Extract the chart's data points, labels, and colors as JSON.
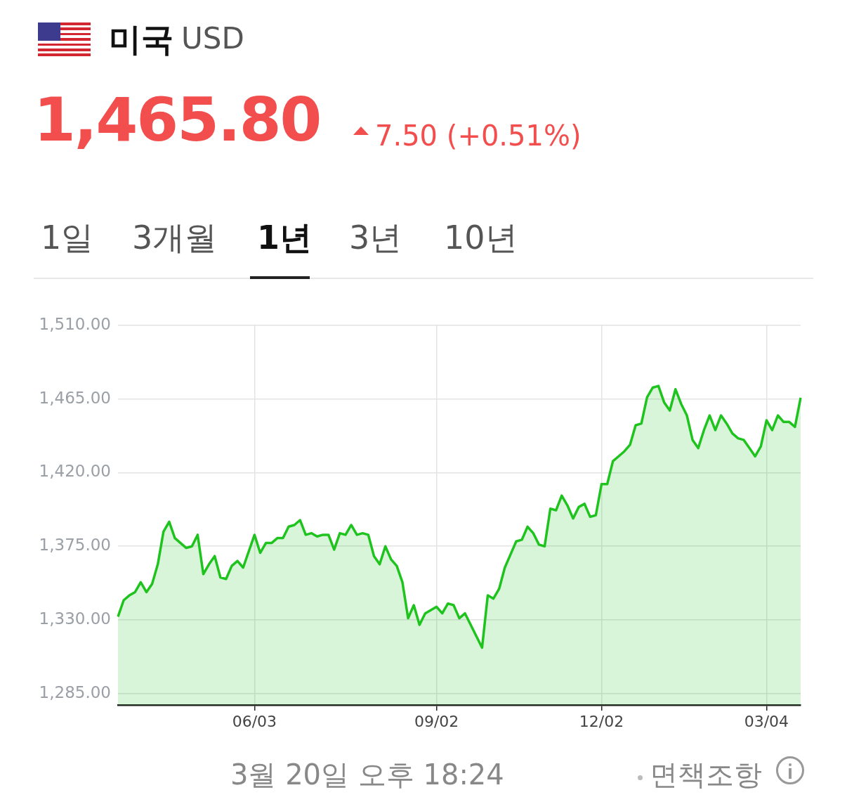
{
  "chart_data": {
    "type": "area",
    "title": "미국",
    "subtitle": "USD",
    "annotations": [
      "1,465.80",
      "7.50 (+0.51%)",
      "1일",
      "3개월",
      "1년",
      "3년",
      "10년",
      "3월 20일 오후 18:24",
      "면책조항"
    ],
    "categories": [
      null,
      null,
      null,
      null,
      null,
      null,
      null,
      null,
      null,
      null,
      null,
      null,
      null,
      null,
      null,
      null,
      null,
      null,
      null,
      null,
      null,
      null,
      null,
      null,
      "06/03",
      null,
      null,
      null,
      null,
      null,
      null,
      null,
      null,
      null,
      null,
      null,
      null,
      null,
      null,
      null,
      null,
      null,
      null,
      null,
      null,
      null,
      null,
      null,
      null,
      null,
      null,
      null,
      null,
      null,
      null,
      null,
      "09/02",
      null,
      null,
      null,
      null,
      null,
      null,
      null,
      null,
      null,
      null,
      null,
      null,
      null,
      null,
      null,
      null,
      null,
      null,
      null,
      null,
      null,
      null,
      null,
      null,
      null,
      null,
      null,
      null,
      "12/02",
      null,
      null,
      null,
      null,
      null,
      null,
      null,
      null,
      null,
      null,
      null,
      null,
      null,
      null,
      null,
      null,
      null,
      null,
      null,
      null,
      null,
      null,
      null,
      null,
      null,
      null,
      null,
      null,
      "03/04",
      null,
      null,
      null,
      null,
      null,
      null
    ],
    "series": [
      {
        "color": "#1ec31e",
        "values": [
          1332,
          1342,
          1345,
          1347,
          1353,
          1347,
          1352,
          1364,
          1384,
          1390,
          1380,
          1377,
          1374,
          1375,
          1382,
          1358,
          1364,
          1369,
          1356,
          1355,
          1363,
          1366,
          1362,
          1372,
          1382,
          1371,
          1377,
          1377,
          1380,
          1380,
          1387,
          1388,
          1391,
          1382,
          1383,
          1381,
          1382,
          1382,
          1373,
          1383,
          1382,
          1388,
          1382,
          1383,
          1382,
          1369,
          1364,
          1375,
          1367,
          1363,
          1353,
          1331,
          1339,
          1327,
          1334,
          1336,
          1338,
          1334,
          1340,
          1339,
          1331,
          1334,
          1327,
          1320,
          1313,
          1345,
          1343,
          1349,
          1362,
          1370,
          1378,
          1379,
          1387,
          1383,
          1376,
          1375,
          1398,
          1397,
          1406,
          1400,
          1392,
          1399,
          1401,
          1393,
          1394,
          1413,
          1413,
          1427,
          1430,
          1433,
          1437,
          1449,
          1450,
          1466,
          1472,
          1473,
          1463,
          1458,
          1471,
          1462,
          1455,
          1440,
          1435,
          1446,
          1455,
          1446,
          1455,
          1450,
          1444,
          1441,
          1440,
          1435,
          1430,
          1436,
          1452,
          1446,
          1455,
          1451,
          1451,
          1448,
          1465.8
        ]
      }
    ],
    "ylim": [
      1278,
      1510
    ],
    "yticks": [
      {
        "value": 1285,
        "label": "1,285.00"
      },
      {
        "value": 1330,
        "label": "1,330.00"
      },
      {
        "value": 1375,
        "label": "1,375.00"
      },
      {
        "value": 1420,
        "label": "1,420.00"
      },
      {
        "value": 1465,
        "label": "1,465.00"
      },
      {
        "value": 1510,
        "label": "1,510.00"
      }
    ],
    "grid": true,
    "legend": false
  }
}
